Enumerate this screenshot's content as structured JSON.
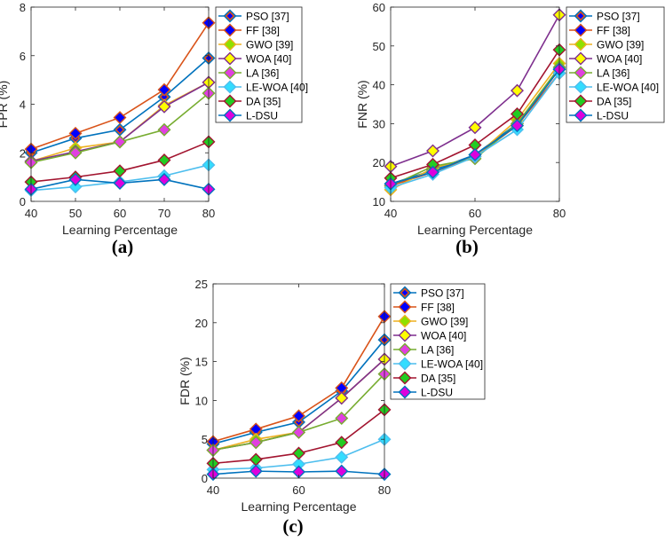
{
  "figure": {
    "captions": [
      "(a)",
      "(b)",
      "(c)"
    ]
  },
  "series_style": [
    {
      "name": "PSO [37]",
      "line": "#0072BD",
      "fill": "#D95319",
      "inner": "#0000FF"
    },
    {
      "name": "FF [38]",
      "line": "#D95319",
      "fill": "#0000FF",
      "inner": "#0000FF"
    },
    {
      "name": "GWO [39]",
      "line": "#EDB120",
      "fill": "#8FE000",
      "inner": "#8FE000"
    },
    {
      "name": "WOA [40]",
      "line": "#7E2F8E",
      "fill": "#FFFF00",
      "inner": "#FFFF00"
    },
    {
      "name": "LA [36]",
      "line": "#77AC30",
      "fill": "#E040E0",
      "inner": "#E040E0"
    },
    {
      "name": "LE-WOA [40]",
      "line": "#4DBEEE",
      "fill": "#33DDFF",
      "inner": "#33DDFF"
    },
    {
      "name": "DA [35]",
      "line": "#A2142F",
      "fill": "#22CC22",
      "inner": "#22CC22"
    },
    {
      "name": "L-DSU",
      "line": "#0072BD",
      "fill": "#DD00DD",
      "inner": "#DD00DD"
    }
  ],
  "chart_data": [
    {
      "type": "line",
      "title": "",
      "caption": "(a)",
      "xlabel": "Learning Percentage",
      "ylabel": "FPR (%)",
      "x": [
        40,
        50,
        60,
        70,
        80
      ],
      "xlim": [
        40,
        80
      ],
      "ylim": [
        0,
        8
      ],
      "xticks": [
        "40",
        "50",
        "60",
        "70",
        "80"
      ],
      "yticks": [
        "0",
        "2",
        "4",
        "6",
        "8"
      ],
      "legend": "top-right-outside",
      "series": [
        {
          "name": "PSO [37]",
          "values": [
            2.0,
            2.6,
            2.95,
            4.3,
            5.9
          ]
        },
        {
          "name": "FF [38]",
          "values": [
            2.15,
            2.8,
            3.45,
            4.6,
            7.35
          ]
        },
        {
          "name": "GWO [39]",
          "values": [
            1.65,
            2.2,
            2.45,
            3.95,
            4.9
          ]
        },
        {
          "name": "WOA [40]",
          "values": [
            1.65,
            2.05,
            2.45,
            3.9,
            4.9
          ]
        },
        {
          "name": "LA [36]",
          "values": [
            1.6,
            2.0,
            2.45,
            2.95,
            4.45
          ]
        },
        {
          "name": "LE-WOA [40]",
          "values": [
            0.45,
            0.6,
            0.8,
            1.05,
            1.5
          ]
        },
        {
          "name": "DA [35]",
          "values": [
            0.8,
            1.0,
            1.25,
            1.7,
            2.45
          ]
        },
        {
          "name": "L-DSU",
          "values": [
            0.5,
            0.9,
            0.75,
            0.9,
            0.5
          ]
        }
      ]
    },
    {
      "type": "line",
      "title": "",
      "caption": "(b)",
      "xlabel": "Learning Percentage",
      "ylabel": "FNR (%)",
      "x": [
        40,
        60,
        80
      ],
      "xlim": [
        40,
        80
      ],
      "ylim": [
        10,
        60
      ],
      "xticks": [
        "40",
        "60",
        "80"
      ],
      "yticks": [
        "10",
        "20",
        "30",
        "40",
        "50",
        "60"
      ],
      "legend": "top-right-outside",
      "series": [
        {
          "name": "PSO [37]",
          "x": [
            40,
            50,
            60,
            70,
            80
          ],
          "values": [
            14.5,
            18.0,
            22.0,
            30.0,
            44.0
          ]
        },
        {
          "name": "FF [38]",
          "x": [
            40,
            50,
            60,
            70,
            80
          ],
          "values": [
            14.0,
            17.5,
            21.5,
            29.5,
            43.0
          ]
        },
        {
          "name": "GWO [39]",
          "x": [
            40,
            50,
            60,
            70,
            80
          ],
          "values": [
            13.0,
            18.5,
            21.5,
            31.0,
            45.5
          ]
        },
        {
          "name": "WOA [40]",
          "x": [
            40,
            50,
            60,
            70,
            80
          ],
          "values": [
            19.0,
            23.0,
            29.0,
            38.5,
            58.0
          ]
        },
        {
          "name": "LA [36]",
          "x": [
            40,
            50,
            60,
            70,
            80
          ],
          "values": [
            14.0,
            19.0,
            21.0,
            30.0,
            44.5
          ]
        },
        {
          "name": "LE-WOA [40]",
          "x": [
            40,
            50,
            60,
            70,
            80
          ],
          "values": [
            13.5,
            17.0,
            21.5,
            28.5,
            43.0
          ]
        },
        {
          "name": "DA [35]",
          "x": [
            40,
            50,
            60,
            70,
            80
          ],
          "values": [
            16.0,
            19.5,
            24.5,
            32.5,
            49.0
          ]
        },
        {
          "name": "L-DSU",
          "x": [
            40,
            50,
            60,
            70,
            80
          ],
          "values": [
            14.5,
            17.5,
            22.0,
            29.5,
            44.0
          ]
        }
      ]
    },
    {
      "type": "line",
      "title": "",
      "caption": "(c)",
      "xlabel": "Learning Percentage",
      "ylabel": "FDR (%)",
      "x": [
        40,
        50,
        60,
        70,
        80
      ],
      "xlim": [
        40,
        80
      ],
      "ylim": [
        0,
        25
      ],
      "xticks": [
        "40",
        "60",
        "80"
      ],
      "yticks": [
        "0",
        "5",
        "10",
        "15",
        "20",
        "25"
      ],
      "legend": "top-right-outside",
      "series": [
        {
          "name": "PSO [37]",
          "values": [
            4.4,
            5.9,
            7.2,
            11.2,
            17.8
          ]
        },
        {
          "name": "FF [38]",
          "values": [
            4.7,
            6.3,
            8.0,
            11.6,
            20.8
          ]
        },
        {
          "name": "GWO [39]",
          "values": [
            3.6,
            5.0,
            5.9,
            10.3,
            15.3
          ]
        },
        {
          "name": "WOA [40]",
          "values": [
            3.6,
            4.6,
            5.9,
            10.3,
            15.3
          ]
        },
        {
          "name": "LA [36]",
          "values": [
            3.6,
            4.6,
            5.9,
            7.7,
            13.4
          ]
        },
        {
          "name": "LE-WOA [40]",
          "values": [
            1.1,
            1.3,
            1.8,
            2.7,
            5.0
          ]
        },
        {
          "name": "DA [35]",
          "values": [
            1.9,
            2.4,
            3.2,
            4.6,
            8.8
          ]
        },
        {
          "name": "L-DSU",
          "values": [
            0.5,
            0.9,
            0.8,
            0.9,
            0.5
          ]
        }
      ]
    }
  ]
}
